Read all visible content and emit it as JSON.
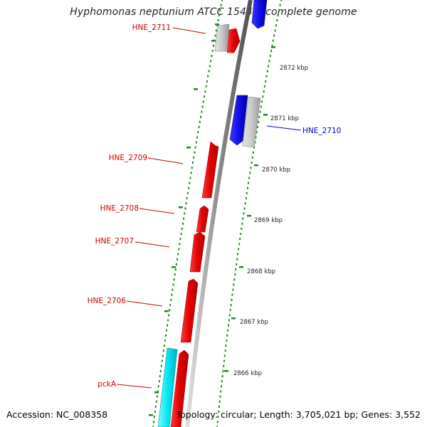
{
  "title": "Hyphomonas neptunium ATCC 15444, complete genome",
  "footer": {
    "accession": "Accession: NC_008358",
    "summary": "Topology: circular; Length: 3,705,021 bp; Genes: 3,552"
  },
  "colors": {
    "plus_strand_gene": "#ee0000",
    "minus_strand_gene": "#1111ee",
    "grey_gene": "#c8c8c8",
    "rna_gene": "#00e8f0",
    "backbone": "#8c8c8c",
    "tick": "#1a8a1a",
    "plus_label": "#cc0000",
    "minus_label": "#0000cc"
  },
  "position_ticks": [
    {
      "label": "2872 kbp"
    },
    {
      "label": "2871 kbp"
    },
    {
      "label": "2870 kbp"
    },
    {
      "label": "2869 kbp"
    },
    {
      "label": "2868 kbp"
    },
    {
      "label": "2867 kbp"
    },
    {
      "label": "2866 kbp"
    }
  ],
  "gene_labels": [
    {
      "name": "HNE_2711",
      "strand": "plus"
    },
    {
      "name": "HNE_2710",
      "strand": "minus"
    },
    {
      "name": "HNE_2709",
      "strand": "plus"
    },
    {
      "name": "HNE_2708",
      "strand": "plus"
    },
    {
      "name": "HNE_2707",
      "strand": "plus"
    },
    {
      "name": "HNE_2706",
      "strand": "plus"
    },
    {
      "name": "pckA",
      "strand": "plus"
    }
  ]
}
